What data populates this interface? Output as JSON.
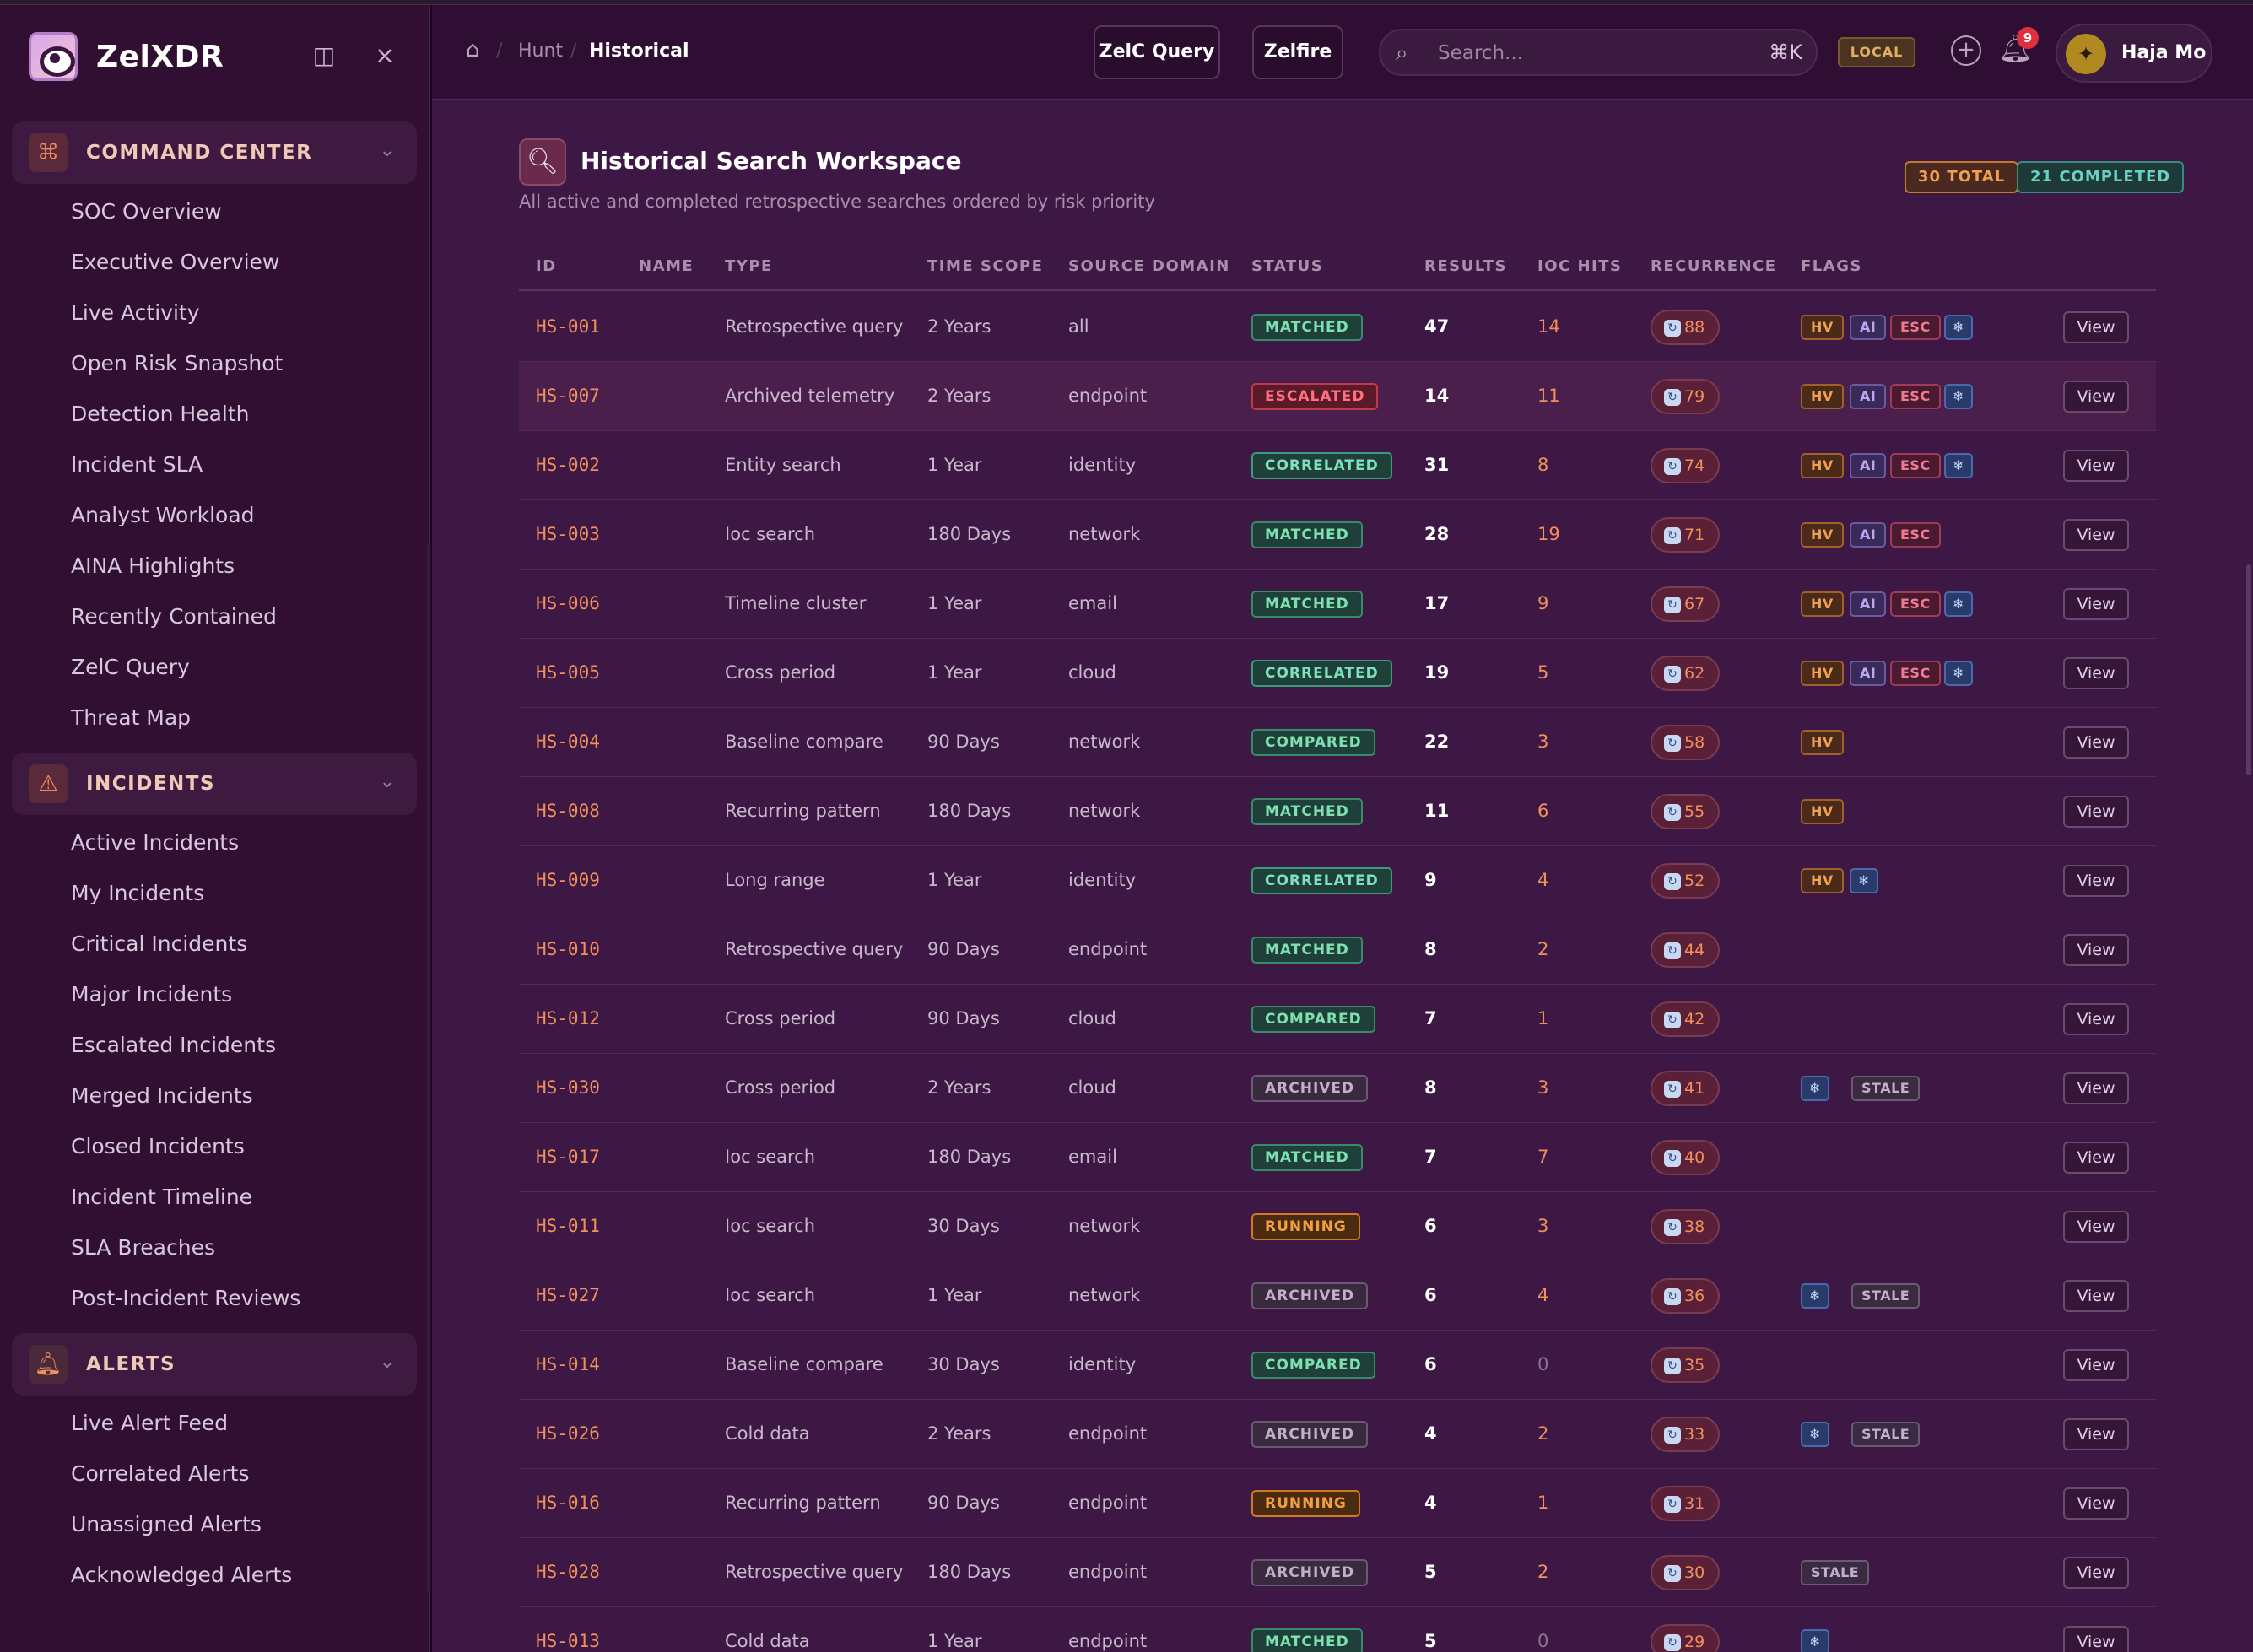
{
  "app": {
    "name": "ZelXDR"
  },
  "sidebar": {
    "sections": [
      {
        "label": "COMMAND CENTER",
        "icon": "command-icon",
        "items": [
          "SOC Overview",
          "Executive Overview",
          "Live Activity",
          "Open Risk Snapshot",
          "Detection Health",
          "Incident SLA",
          "Analyst Workload",
          "AINA Highlights",
          "Recently Contained",
          "ZelC Query",
          "Threat Map"
        ]
      },
      {
        "label": "INCIDENTS",
        "icon": "warning-triangle-icon",
        "items": [
          "Active Incidents",
          "My Incidents",
          "Critical Incidents",
          "Major Incidents",
          "Escalated Incidents",
          "Merged Incidents",
          "Closed Incidents",
          "Incident Timeline",
          "SLA Breaches",
          "Post-Incident Reviews"
        ]
      },
      {
        "label": "ALERTS",
        "icon": "bell-icon",
        "items": [
          "Live Alert Feed",
          "Correlated Alerts",
          "Unassigned Alerts",
          "Acknowledged Alerts"
        ]
      }
    ]
  },
  "header": {
    "breadcrumb": [
      "Hunt",
      "Historical"
    ],
    "buttons": {
      "zelc_query": "ZelC Query",
      "zelfire": "Zelfire"
    },
    "search": {
      "placeholder": "Search...",
      "shortcut": "⌘K"
    },
    "env_badge": "LOCAL",
    "notifications": "9",
    "user": {
      "name": "Haja Mo"
    }
  },
  "panel": {
    "title": "Historical Search Workspace",
    "subtitle": "All active and completed retrospective searches ordered by risk priority",
    "total_badge": "30 TOTAL",
    "completed_badge": "21 COMPLETED",
    "columns": [
      "ID",
      "NAME",
      "TYPE",
      "TIME SCOPE",
      "SOURCE DOMAIN",
      "STATUS",
      "RESULTS",
      "IOC HITS",
      "RECURRENCE",
      "FLAGS"
    ],
    "view_label": "View",
    "rows": [
      {
        "id": "HS-001",
        "type": "Retrospective query",
        "scope": "2 Years",
        "domain": "all",
        "status": "MATCHED",
        "results": "47",
        "ioc": "14",
        "rec": "88",
        "flags": [
          "HV",
          "AI",
          "ESC",
          "❄"
        ]
      },
      {
        "id": "HS-007",
        "type": "Archived telemetry",
        "scope": "2 Years",
        "domain": "endpoint",
        "status": "ESCALATED",
        "results": "14",
        "ioc": "11",
        "rec": "79",
        "flags": [
          "HV",
          "AI",
          "ESC",
          "❄"
        ]
      },
      {
        "id": "HS-002",
        "type": "Entity search",
        "scope": "1 Year",
        "domain": "identity",
        "status": "CORRELATED",
        "results": "31",
        "ioc": "8",
        "rec": "74",
        "flags": [
          "HV",
          "AI",
          "ESC",
          "❄"
        ]
      },
      {
        "id": "HS-003",
        "type": "Ioc search",
        "scope": "180 Days",
        "domain": "network",
        "status": "MATCHED",
        "results": "28",
        "ioc": "19",
        "rec": "71",
        "flags": [
          "HV",
          "AI",
          "ESC"
        ]
      },
      {
        "id": "HS-006",
        "type": "Timeline cluster",
        "scope": "1 Year",
        "domain": "email",
        "status": "MATCHED",
        "results": "17",
        "ioc": "9",
        "rec": "67",
        "flags": [
          "HV",
          "AI",
          "ESC",
          "❄"
        ]
      },
      {
        "id": "HS-005",
        "type": "Cross period",
        "scope": "1 Year",
        "domain": "cloud",
        "status": "CORRELATED",
        "results": "19",
        "ioc": "5",
        "rec": "62",
        "flags": [
          "HV",
          "AI",
          "ESC",
          "❄"
        ]
      },
      {
        "id": "HS-004",
        "type": "Baseline compare",
        "scope": "90 Days",
        "domain": "network",
        "status": "COMPARED",
        "results": "22",
        "ioc": "3",
        "rec": "58",
        "flags": [
          "HV"
        ]
      },
      {
        "id": "HS-008",
        "type": "Recurring pattern",
        "scope": "180 Days",
        "domain": "network",
        "status": "MATCHED",
        "results": "11",
        "ioc": "6",
        "rec": "55",
        "flags": [
          "HV"
        ]
      },
      {
        "id": "HS-009",
        "type": "Long range",
        "scope": "1 Year",
        "domain": "identity",
        "status": "CORRELATED",
        "results": "9",
        "ioc": "4",
        "rec": "52",
        "flags": [
          "HV",
          "❄"
        ]
      },
      {
        "id": "HS-010",
        "type": "Retrospective query",
        "scope": "90 Days",
        "domain": "endpoint",
        "status": "MATCHED",
        "results": "8",
        "ioc": "2",
        "rec": "44",
        "flags": []
      },
      {
        "id": "HS-012",
        "type": "Cross period",
        "scope": "90 Days",
        "domain": "cloud",
        "status": "COMPARED",
        "results": "7",
        "ioc": "1",
        "rec": "42",
        "flags": []
      },
      {
        "id": "HS-030",
        "type": "Cross period",
        "scope": "2 Years",
        "domain": "cloud",
        "status": "ARCHIVED",
        "results": "8",
        "ioc": "3",
        "rec": "41",
        "flags": [
          "❄",
          "STALE"
        ]
      },
      {
        "id": "HS-017",
        "type": "Ioc search",
        "scope": "180 Days",
        "domain": "email",
        "status": "MATCHED",
        "results": "7",
        "ioc": "7",
        "rec": "40",
        "flags": []
      },
      {
        "id": "HS-011",
        "type": "Ioc search",
        "scope": "30 Days",
        "domain": "network",
        "status": "RUNNING",
        "results": "6",
        "ioc": "3",
        "rec": "38",
        "flags": []
      },
      {
        "id": "HS-027",
        "type": "Ioc search",
        "scope": "1 Year",
        "domain": "network",
        "status": "ARCHIVED",
        "results": "6",
        "ioc": "4",
        "rec": "36",
        "flags": [
          "❄",
          "STALE"
        ]
      },
      {
        "id": "HS-014",
        "type": "Baseline compare",
        "scope": "30 Days",
        "domain": "identity",
        "status": "COMPARED",
        "results": "6",
        "ioc": "0",
        "rec": "35",
        "flags": []
      },
      {
        "id": "HS-026",
        "type": "Cold data",
        "scope": "2 Years",
        "domain": "endpoint",
        "status": "ARCHIVED",
        "results": "4",
        "ioc": "2",
        "rec": "33",
        "flags": [
          "❄",
          "STALE"
        ]
      },
      {
        "id": "HS-016",
        "type": "Recurring pattern",
        "scope": "90 Days",
        "domain": "endpoint",
        "status": "RUNNING",
        "results": "4",
        "ioc": "1",
        "rec": "31",
        "flags": []
      },
      {
        "id": "HS-028",
        "type": "Retrospective query",
        "scope": "180 Days",
        "domain": "endpoint",
        "status": "ARCHIVED",
        "results": "5",
        "ioc": "2",
        "rec": "30",
        "flags": [
          "STALE"
        ]
      },
      {
        "id": "HS-013",
        "type": "Cold data",
        "scope": "1 Year",
        "domain": "endpoint",
        "status": "MATCHED",
        "results": "5",
        "ioc": "0",
        "rec": "29",
        "flags": [
          "❄"
        ]
      }
    ]
  }
}
